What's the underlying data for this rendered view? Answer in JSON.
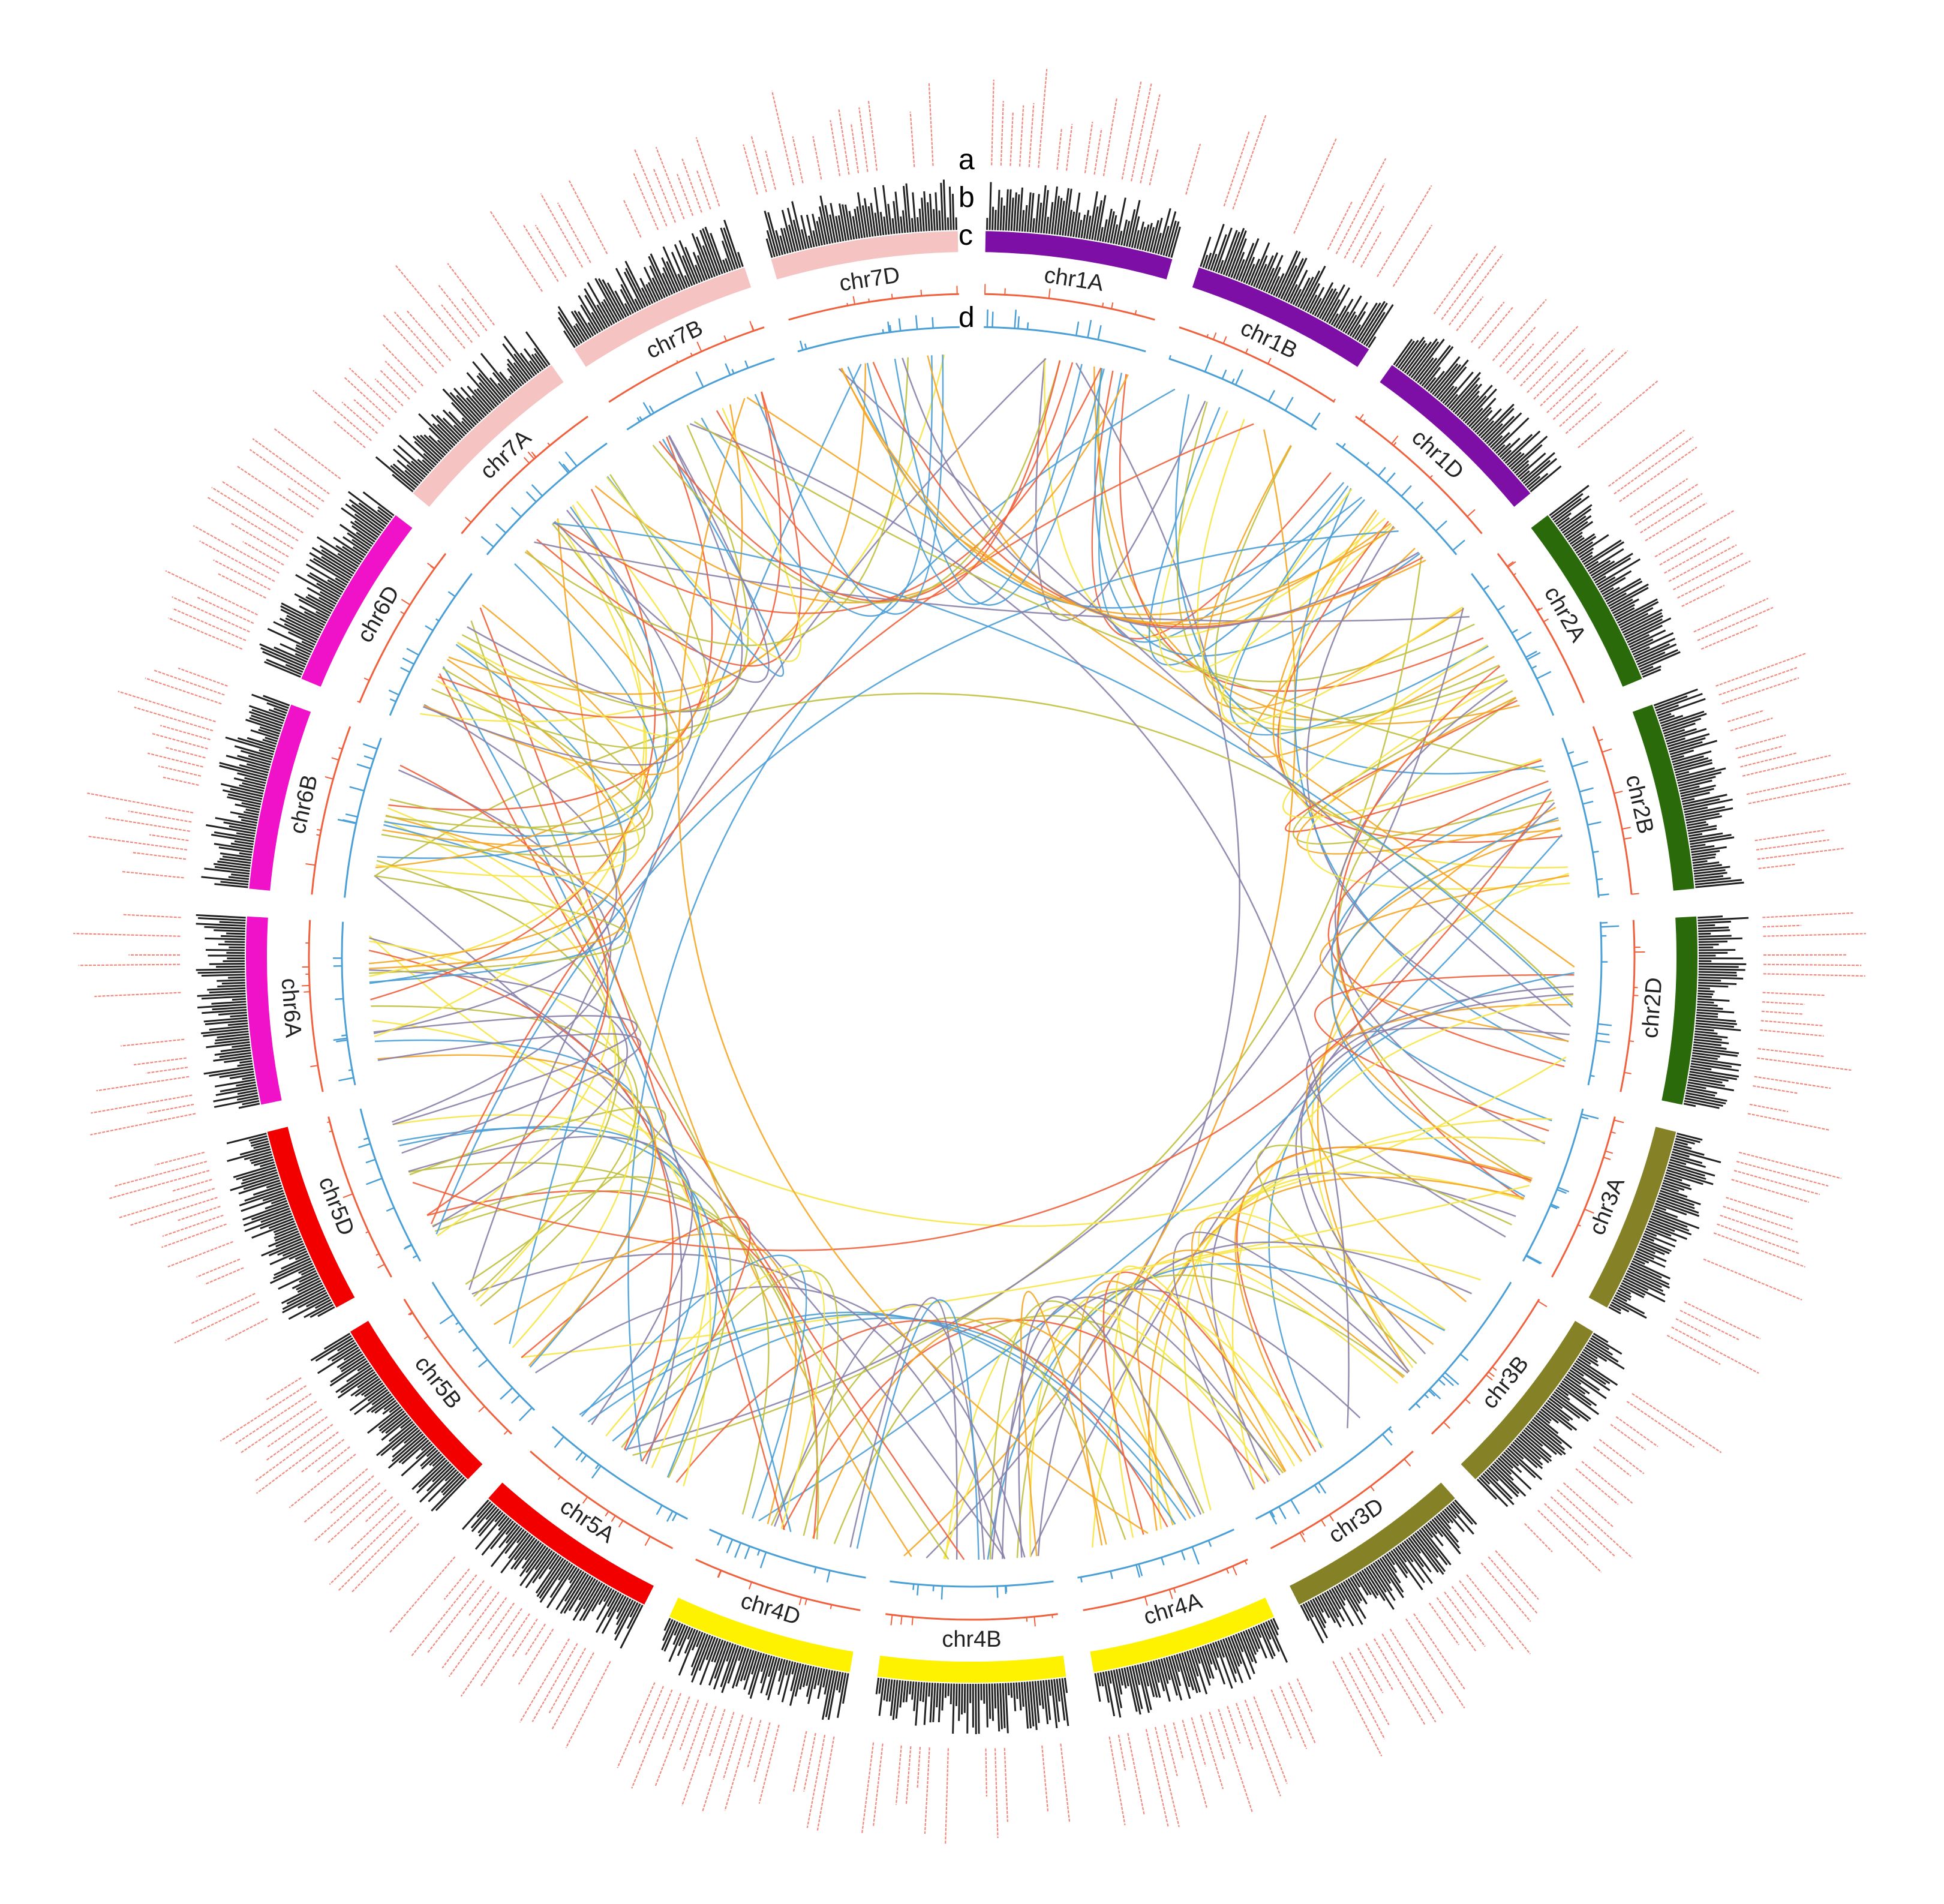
{
  "track_letters": [
    "a",
    "b",
    "c",
    "d"
  ],
  "chromosomes": [
    {
      "name": "chr1A",
      "color": "#7d0fa6"
    },
    {
      "name": "chr1B",
      "color": "#7d0fa6"
    },
    {
      "name": "chr1D",
      "color": "#7d0fa6"
    },
    {
      "name": "chr2A",
      "color": "#2b6a0a"
    },
    {
      "name": "chr2B",
      "color": "#2b6a0a"
    },
    {
      "name": "chr2D",
      "color": "#2b6a0a"
    },
    {
      "name": "chr3A",
      "color": "#858126"
    },
    {
      "name": "chr3B",
      "color": "#858126"
    },
    {
      "name": "chr3D",
      "color": "#858126"
    },
    {
      "name": "chr4A",
      "color": "#fff200"
    },
    {
      "name": "chr4B",
      "color": "#fff200"
    },
    {
      "name": "chr4D",
      "color": "#fff200"
    },
    {
      "name": "chr5A",
      "color": "#f20000"
    },
    {
      "name": "chr5B",
      "color": "#f20000"
    },
    {
      "name": "chr5D",
      "color": "#f20000"
    },
    {
      "name": "chr6A",
      "color": "#f012c9"
    },
    {
      "name": "chr6B",
      "color": "#f012c9"
    },
    {
      "name": "chr6D",
      "color": "#f012c9"
    },
    {
      "name": "chr7A",
      "color": "#f6c3c3"
    },
    {
      "name": "chr7B",
      "color": "#f6c3c3"
    },
    {
      "name": "chr7D",
      "color": "#f6c3c3"
    }
  ],
  "colors": {
    "track_b": "#f0603c",
    "track_c": "#4a9fd6",
    "gene_labels": "#f08a7e",
    "gene_ticks": "#222222",
    "links": [
      "#f0603c",
      "#4a9fd6",
      "#f7e545",
      "#f5a623",
      "#c0c040",
      "#8a7fa8"
    ]
  }
}
